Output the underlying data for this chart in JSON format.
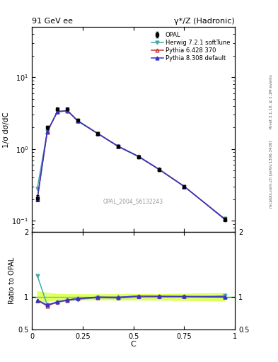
{
  "title_left": "91 GeV ee",
  "title_right": "γ*/Z (Hadronic)",
  "ylabel_main": "1/σ dσ/dC",
  "ylabel_ratio": "Ratio to OPAL",
  "xlabel": "C",
  "watermark": "OPAL_2004_S6132243",
  "right_label_top": "Rivet 3.1.10, ≥ 3.1M events",
  "right_label_bot": "mcplots.cern.ch [arXiv:1306.3436]",
  "ylim_main": [
    0.07,
    50
  ],
  "ylim_ratio": [
    0.5,
    2.0
  ],
  "xlim": [
    0.0,
    1.0
  ],
  "opal_x": [
    0.026,
    0.075,
    0.125,
    0.175,
    0.225,
    0.325,
    0.425,
    0.525,
    0.625,
    0.75,
    0.95
  ],
  "opal_y": [
    0.21,
    2.0,
    3.6,
    3.6,
    2.55,
    1.65,
    1.1,
    0.78,
    0.52,
    0.3,
    0.105
  ],
  "opal_yerr": [
    0.018,
    0.12,
    0.15,
    0.15,
    0.1,
    0.065,
    0.045,
    0.032,
    0.022,
    0.015,
    0.006
  ],
  "herwig_x": [
    0.026,
    0.075,
    0.125,
    0.175,
    0.225,
    0.325,
    0.425,
    0.525,
    0.625,
    0.75,
    0.95
  ],
  "herwig_y": [
    0.28,
    1.75,
    3.3,
    3.4,
    2.45,
    1.63,
    1.08,
    0.78,
    0.52,
    0.3,
    0.107
  ],
  "herwig_color": "#44AAAA",
  "pythia6_x": [
    0.026,
    0.075,
    0.125,
    0.175,
    0.225,
    0.325,
    0.425,
    0.525,
    0.625,
    0.75,
    0.95
  ],
  "pythia6_y": [
    0.2,
    1.72,
    3.32,
    3.42,
    2.48,
    1.64,
    1.09,
    0.79,
    0.525,
    0.302,
    0.105
  ],
  "pythia6_color": "#CC3333",
  "pythia8_x": [
    0.026,
    0.075,
    0.125,
    0.175,
    0.225,
    0.325,
    0.425,
    0.525,
    0.625,
    0.75,
    0.95
  ],
  "pythia8_y": [
    0.2,
    1.75,
    3.33,
    3.43,
    2.49,
    1.645,
    1.095,
    0.79,
    0.525,
    0.302,
    0.105
  ],
  "pythia8_color": "#3333CC",
  "herwig_ratio": [
    1.33,
    0.875,
    0.917,
    0.944,
    0.961,
    0.988,
    0.982,
    1.0,
    1.0,
    1.0,
    1.019
  ],
  "pythia6_ratio": [
    0.95,
    0.86,
    0.922,
    0.95,
    0.973,
    0.994,
    0.991,
    1.013,
    1.01,
    1.007,
    1.0
  ],
  "pythia8_ratio": [
    0.95,
    0.875,
    0.925,
    0.953,
    0.976,
    0.997,
    0.995,
    1.013,
    1.01,
    1.007,
    1.0
  ],
  "band_color": "#CCFF00",
  "band_alpha": 0.55,
  "green_line_color": "#00BB00",
  "legend_entries": [
    "OPAL",
    "Herwig 7.2.1 softTune",
    "Pythia 6.428 370",
    "Pythia 8.308 default"
  ]
}
